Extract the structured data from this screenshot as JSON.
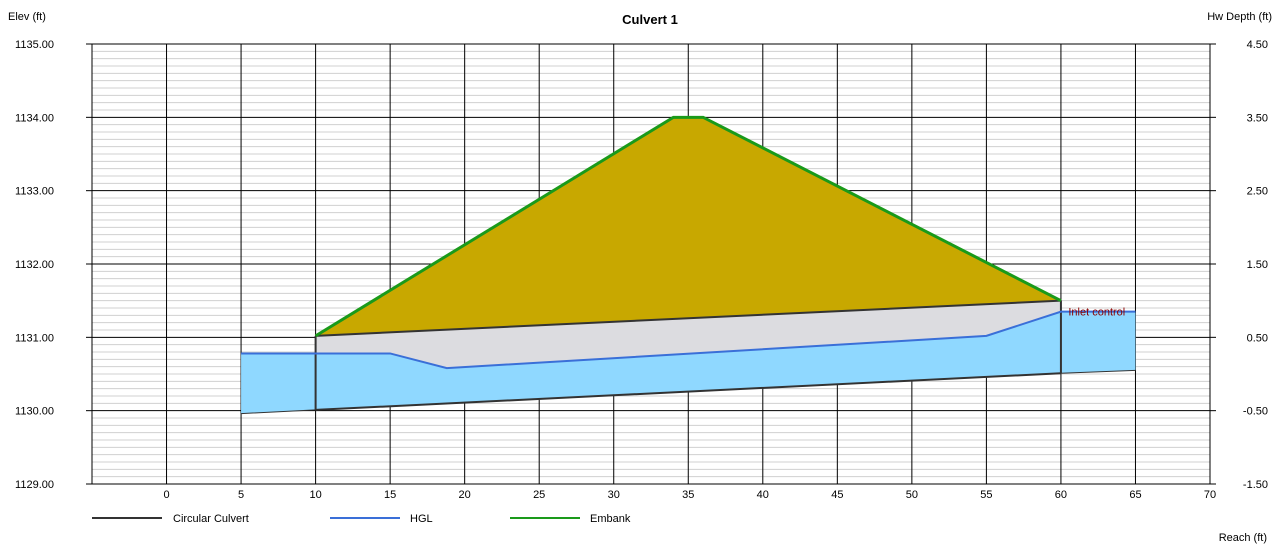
{
  "chart_data": {
    "type": "area",
    "title": "Culvert 1",
    "ylabel_left": "Elev (ft)",
    "ylabel_right": "Hw Depth (ft)",
    "xlabel": "Reach (ft)",
    "xlim": [
      -5,
      70
    ],
    "ylim": [
      1129.0,
      1135.0
    ],
    "y2lim": [
      -1.5,
      4.5
    ],
    "xticks": [
      0,
      5,
      10,
      15,
      20,
      25,
      30,
      35,
      40,
      45,
      50,
      55,
      60,
      65,
      70
    ],
    "yticks": [
      1129.0,
      1130.0,
      1131.0,
      1132.0,
      1133.0,
      1134.0,
      1135.0
    ],
    "yticks_labels": [
      "1129.00",
      "1130.00",
      "1131.00",
      "1132.00",
      "1133.00",
      "1134.00",
      "1135.00"
    ],
    "y2ticks_labels": [
      "-1.50",
      "-0.50",
      "0.50",
      "1.50",
      "2.50",
      "3.50",
      "4.50"
    ],
    "grid": true,
    "legend_position": "bottom-left",
    "legend": [
      "Circular Culvert",
      "HGL",
      "Embank"
    ],
    "colors": {
      "culvert": "#333333",
      "hgl": "#3a6fd8",
      "embank_line": "#1a9a1a",
      "embank_fill": "#c8a800",
      "water_fill": "#8fd8ff",
      "culvert_fill": "#dcdce0",
      "annotation": "#8b0000"
    },
    "series": [
      {
        "name": "Embank",
        "x": [
          10,
          34,
          36,
          60
        ],
        "y": [
          1131.02,
          1134.0,
          1134.0,
          1131.5
        ]
      },
      {
        "name": "HGL",
        "x": [
          5,
          15,
          18.8,
          55,
          60,
          65
        ],
        "y": [
          1130.78,
          1130.78,
          1130.58,
          1131.02,
          1131.35,
          1131.35
        ]
      },
      {
        "name": "Circular Culvert",
        "invert": {
          "x": [
            10,
            60
          ],
          "y": [
            1130.01,
            1130.51
          ]
        },
        "crown": {
          "x": [
            10,
            60
          ],
          "y": [
            1131.02,
            1131.5
          ]
        }
      }
    ],
    "channel_bed": {
      "x": [
        5,
        10,
        60,
        65
      ],
      "y": [
        1129.96,
        1130.01,
        1130.51,
        1130.55
      ]
    },
    "annotations": [
      {
        "text": "Inlet control",
        "x": 60.5,
        "y": 1131.35
      }
    ]
  }
}
